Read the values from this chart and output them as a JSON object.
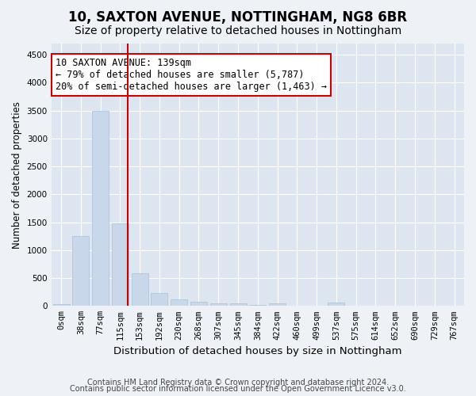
{
  "title1": "10, SAXTON AVENUE, NOTTINGHAM, NG8 6BR",
  "title2": "Size of property relative to detached houses in Nottingham",
  "xlabel": "Distribution of detached houses by size in Nottingham",
  "ylabel": "Number of detached properties",
  "bin_labels": [
    "0sqm",
    "38sqm",
    "77sqm",
    "115sqm",
    "153sqm",
    "192sqm",
    "230sqm",
    "268sqm",
    "307sqm",
    "345sqm",
    "384sqm",
    "422sqm",
    "460sqm",
    "499sqm",
    "537sqm",
    "575sqm",
    "614sqm",
    "652sqm",
    "690sqm",
    "729sqm",
    "767sqm"
  ],
  "bar_heights": [
    30,
    1250,
    3500,
    1480,
    580,
    230,
    120,
    80,
    50,
    40,
    15,
    50,
    5,
    0,
    60,
    0,
    0,
    0,
    0,
    0,
    0
  ],
  "bar_color": "#c8d8ea",
  "bar_edge_color": "#a8c0d8",
  "vline_color": "#cc0000",
  "vline_x": 3.4,
  "annotation_text": "10 SAXTON AVENUE: 139sqm\n← 79% of detached houses are smaller (5,787)\n20% of semi-detached houses are larger (1,463) →",
  "annotation_box_color": "#ffffff",
  "annotation_box_edge": "#cc0000",
  "ylim": [
    0,
    4700
  ],
  "yticks": [
    0,
    500,
    1000,
    1500,
    2000,
    2500,
    3000,
    3500,
    4000,
    4500
  ],
  "footer1": "Contains HM Land Registry data © Crown copyright and database right 2024.",
  "footer2": "Contains public sector information licensed under the Open Government Licence v3.0.",
  "bg_color": "#eef2f7",
  "plot_bg_color": "#dde6f0",
  "grid_color": "#ffffff",
  "title1_fontsize": 12,
  "title2_fontsize": 10,
  "xlabel_fontsize": 9.5,
  "ylabel_fontsize": 8.5,
  "tick_fontsize": 7.5,
  "annotation_fontsize": 8.5,
  "footer_fontsize": 7
}
